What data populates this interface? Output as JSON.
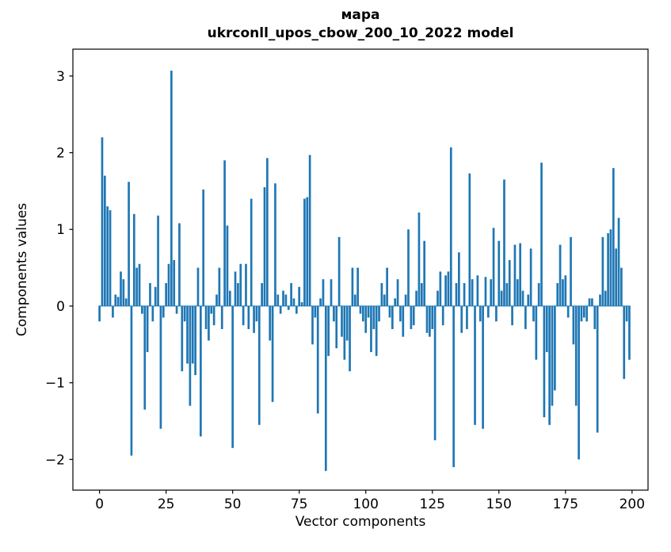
{
  "figure": {
    "title_line1": "мара",
    "title_line2": "ukrconll_upos_cbow_200_10_2022 model",
    "xlabel": "Vector components",
    "ylabel": "Components values"
  },
  "chart_data": {
    "type": "bar",
    "title": "мара — ukrconll_upos_cbow_200_10_2022 model",
    "xlabel": "Vector components",
    "ylabel": "Components values",
    "bar_color": "#1f77b4",
    "grid": false,
    "legend": "none",
    "xticks": [
      0,
      25,
      50,
      75,
      100,
      125,
      150,
      175,
      200
    ],
    "yticks": [
      -2,
      -1,
      0,
      1,
      2,
      3
    ],
    "xlim": [
      -10,
      206
    ],
    "ylim": [
      -2.4,
      3.35
    ],
    "x_is_index": true,
    "n_components": 200,
    "values": [
      -0.2,
      2.2,
      1.7,
      1.3,
      1.25,
      -0.15,
      0.15,
      0.12,
      0.45,
      0.35,
      0.1,
      1.62,
      -1.95,
      1.2,
      0.5,
      0.55,
      -0.1,
      -1.35,
      -0.6,
      0.3,
      -0.2,
      0.25,
      1.18,
      -1.6,
      -0.15,
      0.3,
      0.55,
      3.07,
      0.6,
      -0.1,
      1.08,
      -0.85,
      -0.2,
      -0.75,
      -1.3,
      -0.75,
      -0.9,
      0.5,
      -1.7,
      1.52,
      -0.3,
      -0.45,
      -0.1,
      -0.25,
      0.15,
      0.5,
      -0.3,
      1.9,
      1.05,
      0.2,
      -1.85,
      0.45,
      0.3,
      0.55,
      -0.25,
      0.55,
      -0.3,
      1.4,
      -0.35,
      -0.2,
      -1.55,
      0.3,
      1.55,
      1.93,
      -0.45,
      -1.25,
      1.6,
      0.15,
      -0.1,
      0.2,
      0.15,
      -0.05,
      0.3,
      0.1,
      -0.1,
      0.25,
      0.05,
      1.4,
      1.42,
      1.97,
      -0.5,
      -0.15,
      -1.4,
      0.1,
      0.35,
      -2.15,
      -0.65,
      0.35,
      -0.2,
      -0.55,
      0.9,
      -0.4,
      -0.7,
      -0.45,
      -0.85,
      0.5,
      0.15,
      0.5,
      -0.1,
      -0.2,
      -0.35,
      -0.15,
      -0.6,
      -0.3,
      -0.65,
      -0.2,
      0.3,
      0.15,
      0.5,
      -0.15,
      -0.3,
      0.1,
      0.35,
      -0.2,
      -0.4,
      0.15,
      1.0,
      -0.3,
      -0.25,
      0.2,
      1.22,
      0.3,
      0.85,
      -0.35,
      -0.4,
      -0.3,
      -1.75,
      0.2,
      0.45,
      -0.25,
      0.4,
      0.45,
      2.07,
      -2.1,
      0.3,
      0.7,
      -0.35,
      0.3,
      -0.3,
      1.73,
      0.35,
      -1.55,
      0.4,
      -0.2,
      -1.6,
      0.38,
      -0.15,
      0.35,
      1.02,
      -0.2,
      0.85,
      0.2,
      1.65,
      0.3,
      0.6,
      -0.25,
      0.8,
      0.35,
      0.82,
      0.2,
      -0.3,
      0.15,
      0.75,
      -0.2,
      -0.7,
      0.3,
      1.87,
      -1.45,
      -0.6,
      -1.55,
      -1.3,
      -1.1,
      0.3,
      0.8,
      0.35,
      0.4,
      -0.15,
      0.9,
      -0.5,
      -1.3,
      -2.0,
      -0.2,
      -0.15,
      -0.2,
      0.1,
      0.1,
      -0.3,
      -1.65,
      0.15,
      0.9,
      0.2,
      0.95,
      1.0,
      1.8,
      0.75,
      1.15,
      0.5,
      -0.95,
      -0.2,
      -0.7
    ]
  }
}
